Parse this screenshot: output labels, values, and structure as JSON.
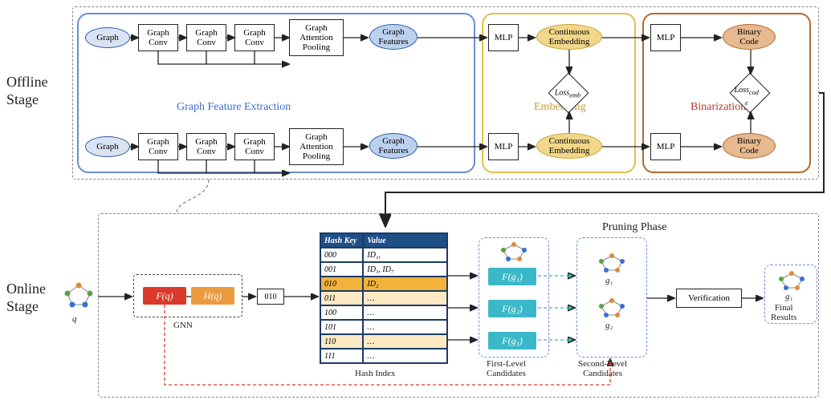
{
  "labels": {
    "offline": "Offline\nStage",
    "online": "Online\nStage"
  },
  "sections": {
    "blue": "Graph Feature Extraction",
    "yellow": "Embedding",
    "brown": "Binarization"
  },
  "offline": {
    "graph": "Graph",
    "gconv": "Graph\nConv",
    "gap": "Graph\nAttention\nPooling",
    "feat": "Graph\nFeatures",
    "mlp": "MLP",
    "emb": "Continuous\nEmbedding",
    "bin": "Binary\nCode",
    "loss_emb": "Loss",
    "loss_emb_sub": "emb",
    "loss_cod": "Loss",
    "loss_cod_sub": "cod\ne"
  },
  "online": {
    "q": "q",
    "fq": "F(q)",
    "hq": "H(q)",
    "code": "010",
    "gnn": "GNN",
    "hash_caption": "Hash Index",
    "first_caption": "First-Level\nCandidates",
    "second_caption": "Second-Level\nCandidates",
    "pruning_title": "Pruning Phase",
    "verification": "Verification",
    "final": "Final\nResults",
    "fg": [
      "F(g₁)",
      "F(g₂)",
      "F(g₃)"
    ],
    "g": [
      "g₁",
      "g₂"
    ],
    "gfinal": "g₁"
  },
  "table": {
    "headers": [
      "Hash Key",
      "Value"
    ],
    "rows": [
      {
        "k": "000",
        "v": "ID₁,",
        "bg": "#ffffff"
      },
      {
        "k": "001",
        "v": "ID₃, ID₇",
        "bg": "#ffffff"
      },
      {
        "k": "010",
        "v": "ID₂",
        "bg": "#f2b33a"
      },
      {
        "k": "011",
        "v": "…",
        "bg": "#fbe9c4"
      },
      {
        "k": "100",
        "v": "…",
        "bg": "#ffffff"
      },
      {
        "k": "101",
        "v": "…",
        "bg": "#ffffff"
      },
      {
        "k": "110",
        "v": "…",
        "bg": "#fbe9c4"
      },
      {
        "k": "111",
        "v": "…",
        "bg": "#ffffff"
      }
    ]
  },
  "colors": {
    "panel_blue": "#6a8fd6",
    "panel_yellow": "#e2c04d",
    "panel_brown": "#b46a2e",
    "row_highlight": "#f2b33a",
    "row_soft": "#fbe9c4",
    "chip_red": "#d93a2b",
    "chip_orange": "#ec9a3f",
    "chip_teal": "#3ab8c8",
    "table_header": "#1e4f86"
  }
}
